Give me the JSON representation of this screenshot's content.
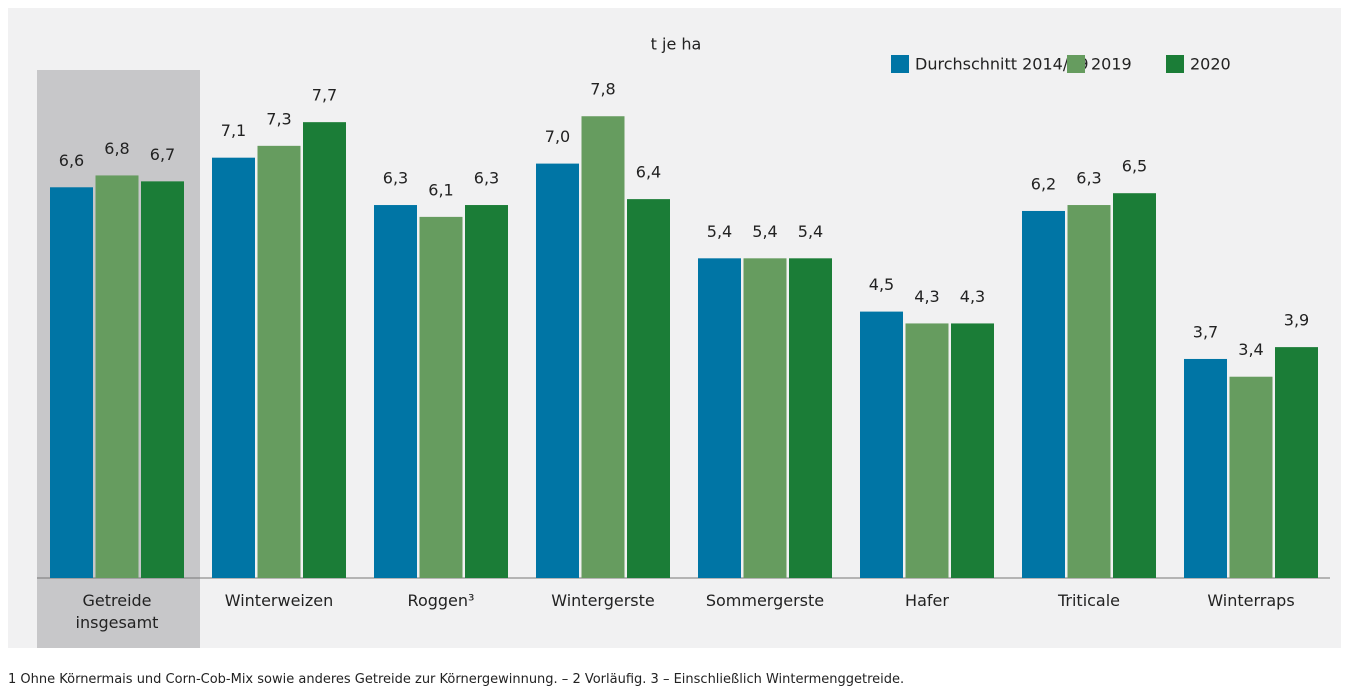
{
  "chart_data": {
    "type": "bar",
    "title": "t je ha",
    "categories": [
      "Getreide insgesamt",
      "Winterweizen",
      "Roggen³",
      "Wintergerste",
      "Sommergerste",
      "Hafer",
      "Triticale",
      "Winterraps"
    ],
    "series": [
      {
        "name": "Durchschnitt 2014/19",
        "color": "#0075a5",
        "values": [
          6.6,
          7.1,
          6.3,
          7.0,
          5.4,
          4.5,
          6.2,
          3.7
        ],
        "value_labels": [
          "6,6",
          "7,1",
          "6,3",
          "7,0",
          "5,4",
          "4,5",
          "6,2",
          "3,7"
        ]
      },
      {
        "name": "2019",
        "color": "#669c5f",
        "values": [
          6.8,
          7.3,
          6.1,
          7.8,
          5.4,
          4.3,
          6.3,
          3.4
        ],
        "value_labels": [
          "6,8",
          "7,3",
          "6,1",
          "7,8",
          "5,4",
          "4,3",
          "6,3",
          "3,4"
        ]
      },
      {
        "name": "2020",
        "color": "#1b7d37",
        "values": [
          6.7,
          7.7,
          6.3,
          6.4,
          5.4,
          4.3,
          6.5,
          3.9
        ],
        "value_labels": [
          "6,7",
          "7,7",
          "6,3",
          "6,4",
          "5,4",
          "4,3",
          "6,5",
          "3,9"
        ]
      }
    ],
    "ylim": [
      0,
      8
    ],
    "legend": "top-right",
    "footnote": "1 Ohne Körnermais und Corn-Cob-Mix sowie anderes Getreide zur Körnergewinnung. – 2 Vorläufig.  3 – Einschließlich Wintermenggetreide."
  }
}
